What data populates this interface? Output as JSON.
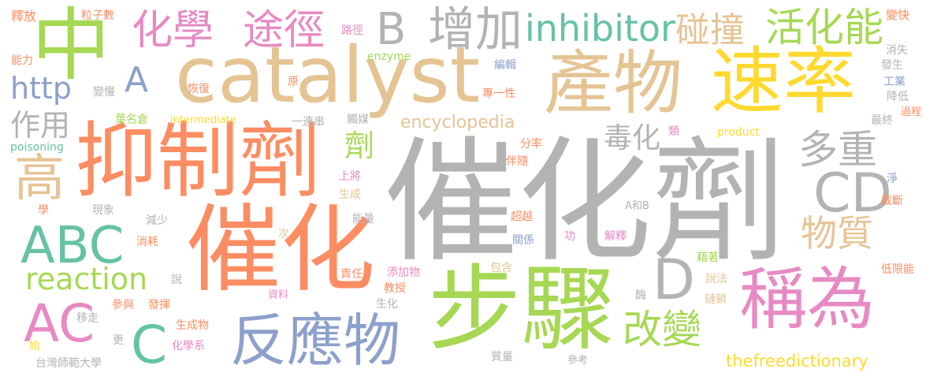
{
  "palette": {
    "gray": "#b3b3b3",
    "orange": "#fc8d62",
    "green": "#a6d854",
    "tan": "#e5c494",
    "yellow": "#ffd92f",
    "pink": "#e78ac3",
    "blue": "#8da0cb",
    "teal": "#66c2a5"
  },
  "words": [
    {
      "id": "w-cuihuaji",
      "text": "催化劑"
    },
    {
      "id": "w-buzhou",
      "text": "步驟"
    },
    {
      "id": "w-catalyst",
      "text": "catalyst"
    },
    {
      "id": "w-cuihua",
      "text": "催化"
    },
    {
      "id": "w-yizhiji",
      "text": "抑制劑"
    },
    {
      "id": "w-chanwu",
      "text": "產物"
    },
    {
      "id": "w-sulu",
      "text": "速率"
    },
    {
      "id": "w-zhong",
      "text": "中"
    },
    {
      "id": "w-chengwei",
      "text": "稱為"
    },
    {
      "id": "w-fanyingwu",
      "text": "反應物"
    },
    {
      "id": "w-abc",
      "text": "ABC"
    },
    {
      "id": "w-cd",
      "text": "CD"
    },
    {
      "id": "w-huaxue",
      "text": "化學"
    },
    {
      "id": "w-tujing",
      "text": "途徑"
    },
    {
      "id": "w-zengjia",
      "text": "增加"
    },
    {
      "id": "w-inhibitor",
      "text": "inhibitor"
    },
    {
      "id": "w-pengzhuang",
      "text": "碰撞"
    },
    {
      "id": "w-huohuaneng",
      "text": "活化能"
    },
    {
      "id": "w-duozhong",
      "text": "多重"
    },
    {
      "id": "w-gao",
      "text": "高"
    },
    {
      "id": "w-gaibian",
      "text": "改變"
    },
    {
      "id": "w-wuzhi",
      "text": "物質"
    },
    {
      "id": "w-ac",
      "text": "AC"
    },
    {
      "id": "w-d",
      "text": "D"
    },
    {
      "id": "w-c",
      "text": "C"
    },
    {
      "id": "w-b",
      "text": "B"
    },
    {
      "id": "w-a",
      "text": "A"
    },
    {
      "id": "w-reaction",
      "text": "reaction"
    },
    {
      "id": "w-http",
      "text": "http"
    },
    {
      "id": "w-zuoyong",
      "text": "作用"
    },
    {
      "id": "w-duhua",
      "text": "毒化"
    },
    {
      "id": "w-ji",
      "text": "劑"
    },
    {
      "id": "w-encyclopedia",
      "text": "encyclopedia"
    },
    {
      "id": "w-tfd",
      "text": "thefreedictionary"
    },
    {
      "id": "w-shifang",
      "text": "釋放"
    },
    {
      "id": "w-lizishu",
      "text": "粒子數"
    },
    {
      "id": "w-lujing",
      "text": "路徑"
    },
    {
      "id": "w-enzyme",
      "text": "enzyme"
    },
    {
      "id": "w-biankuai",
      "text": "變快"
    },
    {
      "id": "w-nengli",
      "text": "能力"
    },
    {
      "id": "w-bianji",
      "text": "編輯"
    },
    {
      "id": "w-xiaoshi",
      "text": "消失"
    },
    {
      "id": "w-fasheng",
      "text": "發生"
    },
    {
      "id": "w-gongye",
      "text": "工業"
    },
    {
      "id": "w-jiangdi",
      "text": "降低"
    },
    {
      "id": "w-biarman",
      "text": "變慢"
    },
    {
      "id": "w-huifu",
      "text": "恢復"
    },
    {
      "id": "w-yuan",
      "text": "原"
    },
    {
      "id": "w-zhuanyixing",
      "text": "專一性"
    },
    {
      "id": "w-yemingcang",
      "text": "葉名倉"
    },
    {
      "id": "w-intermediate",
      "text": "intermediate"
    },
    {
      "id": "w-yiliancuan",
      "text": "一連串"
    },
    {
      "id": "w-chumei",
      "text": "觸媒"
    },
    {
      "id": "w-zuizhong",
      "text": "最終"
    },
    {
      "id": "w-guocheng",
      "text": "過程"
    },
    {
      "id": "w-poisoning",
      "text": "poisoning"
    },
    {
      "id": "w-lei",
      "text": "類"
    },
    {
      "id": "w-product",
      "text": "product"
    },
    {
      "id": "w-fenlv",
      "text": "分率"
    },
    {
      "id": "w-banshui",
      "text": "伴隨"
    },
    {
      "id": "w-shangjiang",
      "text": "上將"
    },
    {
      "id": "w-shengcheng",
      "text": "生成"
    },
    {
      "id": "w-jing",
      "text": "淨"
    },
    {
      "id": "w-jieduan",
      "text": "截斷"
    },
    {
      "id": "w-xue",
      "text": "學"
    },
    {
      "id": "w-xianxiang",
      "text": "現象"
    },
    {
      "id": "w-jianshao",
      "text": "減少"
    },
    {
      "id": "w-nengliang",
      "text": "能量"
    },
    {
      "id": "w-chaoyue",
      "text": "超越"
    },
    {
      "id": "w-aheb",
      "text": "A和B"
    },
    {
      "id": "w-ci",
      "text": "次"
    },
    {
      "id": "w-guanxi",
      "text": "關係"
    },
    {
      "id": "w-gong",
      "text": "功"
    },
    {
      "id": "w-jieshi",
      "text": "解釋"
    },
    {
      "id": "w-xiaohao",
      "text": "消耗"
    },
    {
      "id": "w-jizhu",
      "text": "藉著"
    },
    {
      "id": "w-baohan",
      "text": "包含"
    },
    {
      "id": "w-dixianneng",
      "text": "低限能"
    },
    {
      "id": "w-zeren",
      "text": "責任"
    },
    {
      "id": "w-tianjiawu",
      "text": "添加物"
    },
    {
      "id": "w-shuo",
      "text": "說"
    },
    {
      "id": "w-shuofa",
      "text": "說法"
    },
    {
      "id": "w-jiaoshou",
      "text": "教授"
    },
    {
      "id": "w-ziliao",
      "text": "資料"
    },
    {
      "id": "w-mei",
      "text": "酶"
    },
    {
      "id": "w-liansuo",
      "text": "鏈鎖"
    },
    {
      "id": "w-canyu",
      "text": "參與"
    },
    {
      "id": "w-shenghua",
      "text": "生化"
    },
    {
      "id": "w-fahui",
      "text": "發揮"
    },
    {
      "id": "w-yizou",
      "text": "移走"
    },
    {
      "id": "w-shengchengwu",
      "text": "生成物"
    },
    {
      "id": "w-shi",
      "text": "始"
    },
    {
      "id": "w-geng",
      "text": "更"
    },
    {
      "id": "w-huaxuexi",
      "text": "化學系"
    },
    {
      "id": "w-cankao",
      "text": "參考"
    },
    {
      "id": "w-zhiliang",
      "text": "質量"
    },
    {
      "id": "w-ntnu",
      "text": "台灣師範大學"
    }
  ]
}
